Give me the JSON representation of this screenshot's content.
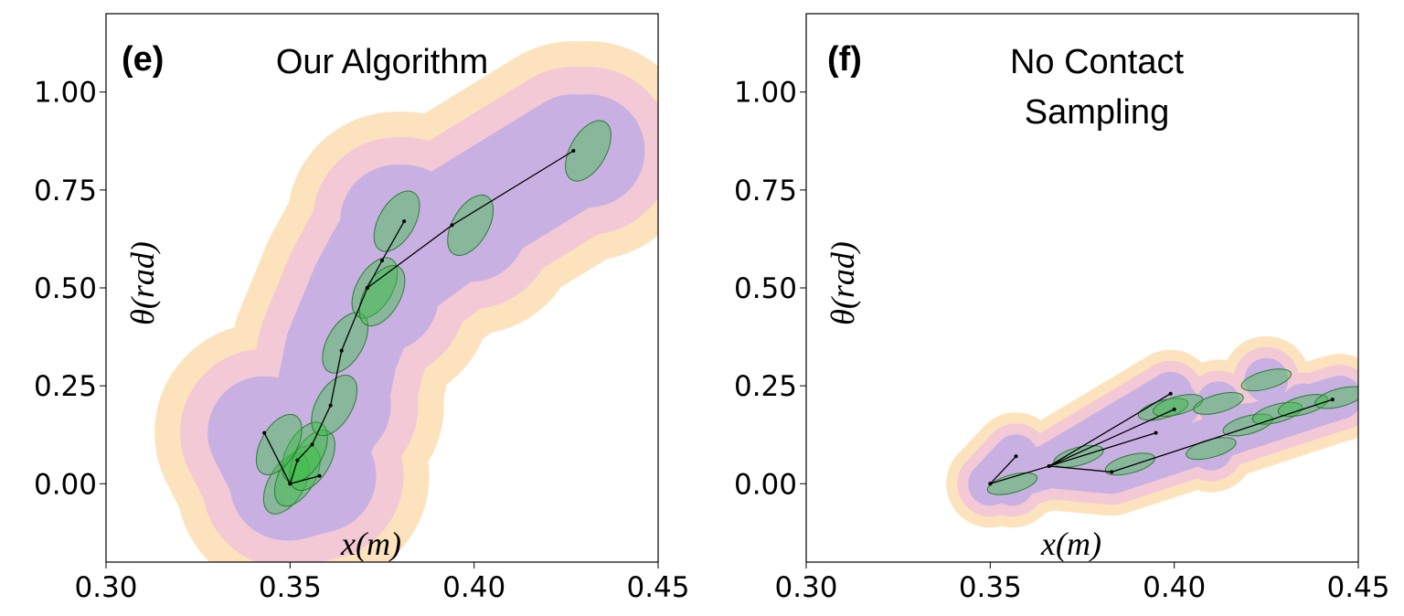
{
  "chart_data": [
    {
      "type": "trajectory",
      "label": "(e)",
      "title_lines": [
        "Our Algorithm"
      ],
      "xlabel": "x(m)",
      "ylabel": "θ(rad)",
      "xlim": [
        0.3,
        0.45
      ],
      "ylim": [
        -0.2,
        1.2
      ],
      "xticks": [
        {
          "value": 0.3,
          "label": "0.30"
        },
        {
          "value": 0.35,
          "label": "0.35"
        },
        {
          "value": 0.4,
          "label": "0.40"
        },
        {
          "value": 0.45,
          "label": "0.45"
        }
      ],
      "yticks": [
        {
          "value": 0,
          "label": "0.00"
        },
        {
          "value": 0.25,
          "label": "0.25"
        },
        {
          "value": 0.5,
          "label": "0.50"
        },
        {
          "value": 0.75,
          "label": "0.75"
        },
        {
          "value": 1,
          "label": "1.00"
        }
      ],
      "paths": [
        {
          "x": [
            0.35,
            0.352,
            0.356,
            0.361,
            0.364,
            0.371,
            0.375,
            0.381
          ],
          "y": [
            0.0,
            0.06,
            0.1,
            0.2,
            0.34,
            0.5,
            0.57,
            0.67
          ]
        },
        {
          "x": [
            0.371,
            0.394,
            0.427
          ],
          "y": [
            0.5,
            0.66,
            0.85
          ]
        },
        {
          "x": [
            0.35,
            0.343
          ],
          "y": [
            0.0,
            0.13
          ]
        },
        {
          "x": [
            0.35,
            0.358
          ],
          "y": [
            0.0,
            0.02
          ]
        }
      ],
      "ellipses": {
        "x": [
          0.349,
          0.352,
          0.356,
          0.354,
          0.347,
          0.362,
          0.365,
          0.373,
          0.375,
          0.379,
          0.399,
          0.431
        ],
        "y": [
          0.0,
          0.02,
          0.06,
          0.08,
          0.1,
          0.2,
          0.36,
          0.5,
          0.48,
          0.67,
          0.66,
          0.85
        ]
      }
    },
    {
      "type": "trajectory",
      "label": "(f)",
      "title_lines": [
        "No Contact",
        "Sampling"
      ],
      "xlabel": "x(m)",
      "ylabel": "θ(rad)",
      "xlim": [
        0.3,
        0.45
      ],
      "ylim": [
        -0.2,
        1.2
      ],
      "xticks": [
        {
          "value": 0.3,
          "label": "0.30"
        },
        {
          "value": 0.35,
          "label": "0.35"
        },
        {
          "value": 0.4,
          "label": "0.40"
        },
        {
          "value": 0.45,
          "label": "0.45"
        }
      ],
      "yticks": [
        {
          "value": 0,
          "label": "0.00"
        },
        {
          "value": 0.25,
          "label": "0.25"
        },
        {
          "value": 0.5,
          "label": "0.50"
        },
        {
          "value": 0.75,
          "label": "0.75"
        },
        {
          "value": 1,
          "label": "1.00"
        }
      ],
      "paths": [
        {
          "x": [
            0.35,
            0.366,
            0.399
          ],
          "y": [
            0.0,
            0.045,
            0.23
          ]
        },
        {
          "x": [
            0.366,
            0.4
          ],
          "y": [
            0.045,
            0.19
          ]
        },
        {
          "x": [
            0.366,
            0.395
          ],
          "y": [
            0.045,
            0.13
          ]
        },
        {
          "x": [
            0.366,
            0.383,
            0.443
          ],
          "y": [
            0.045,
            0.03,
            0.215
          ]
        },
        {
          "x": [
            0.35,
            0.357
          ],
          "y": [
            0.0,
            0.07
          ]
        }
      ],
      "ellipses": {
        "x": [
          0.356,
          0.374,
          0.397,
          0.401,
          0.412,
          0.42,
          0.428,
          0.435,
          0.445,
          0.425,
          0.388,
          0.41
        ],
        "y": [
          0.0,
          0.07,
          0.19,
          0.2,
          0.205,
          0.15,
          0.18,
          0.2,
          0.22,
          0.265,
          0.05,
          0.09
        ]
      }
    }
  ]
}
